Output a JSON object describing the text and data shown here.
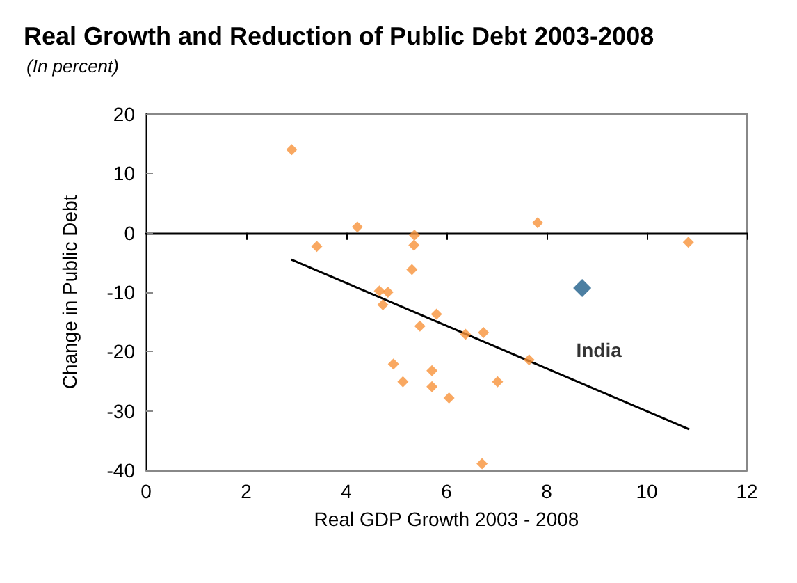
{
  "chart_data": {
    "type": "scatter",
    "title": "Real Growth and Reduction of Public Debt 2003-2008",
    "subtitle": "(In percent)",
    "xlabel": "Real GDP Growth 2003 - 2008",
    "ylabel": "Change in Public Debt",
    "xlim": [
      0,
      12
    ],
    "xticks": [
      0,
      2,
      4,
      6,
      8,
      10,
      12
    ],
    "ylim": [
      -40,
      20
    ],
    "yticks": [
      -40,
      -30,
      -20,
      -10,
      0,
      10,
      20
    ],
    "legend": false,
    "marker": "diamond",
    "series": [
      {
        "color": "#f7923a",
        "x": [
          2.91,
          3.41,
          4.22,
          5.36,
          5.35,
          5.31,
          4.66,
          4.83,
          4.73,
          5.8,
          5.47,
          6.38,
          6.74,
          7.65,
          4.94,
          5.71,
          5.13,
          5.71,
          7.02,
          6.05,
          6.71,
          7.82,
          10.83
        ],
        "values": [
          14,
          -2.3,
          1,
          -0.4,
          -2.1,
          -6.2,
          -9.8,
          -10,
          -12.1,
          -13.7,
          -15.7,
          -17.1,
          -16.8,
          -21.4,
          -22.1,
          -23.2,
          -25.1,
          -25.9,
          -25.1,
          -27.8,
          -38.9,
          1.7,
          -1.6
        ]
      },
      {
        "name": "India",
        "color": "#1f5f8b",
        "x": [
          8.71
        ],
        "values": [
          -9.3
        ]
      },
      {
        "type": "line",
        "color": "#000000",
        "marker": "none",
        "x": [
          2.9,
          10.85
        ],
        "values": [
          -4.5,
          -33.1
        ]
      }
    ]
  }
}
